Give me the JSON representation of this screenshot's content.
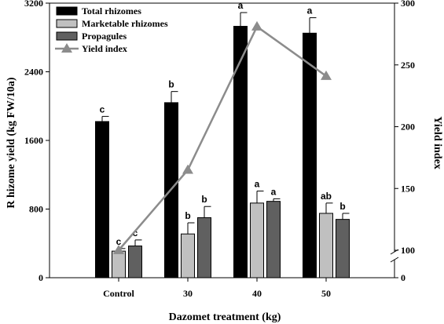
{
  "chart_data": {
    "type": "bar",
    "title": "",
    "xlabel": "Dazomet treatment (kg)",
    "ylabel": "R hizome yield (kg FW/10a)",
    "y2label": "Yield index",
    "categories": [
      "Control",
      "30",
      "40",
      "50"
    ],
    "ylim": [
      0,
      3200
    ],
    "yticks": [
      0,
      800,
      1600,
      2400,
      3200
    ],
    "y2lim": [
      0,
      300
    ],
    "y2ticks": [
      0,
      100,
      150,
      200,
      250,
      300
    ],
    "y2_axis_break": [
      0,
      100
    ],
    "legend_position": "top-left",
    "grid": false,
    "series": [
      {
        "name": "Total rhizomes",
        "color": "#000000",
        "values": [
          1820,
          2040,
          2930,
          2850
        ],
        "errors": [
          60,
          130,
          160,
          180
        ],
        "labels": [
          "c",
          "b",
          "a",
          "a"
        ]
      },
      {
        "name": "Marketable rhizomes",
        "color": "#c0c0c0",
        "values": [
          310,
          510,
          870,
          750
        ],
        "errors": [
          30,
          130,
          140,
          120
        ],
        "labels": [
          "c",
          "b",
          "a",
          "ab"
        ]
      },
      {
        "name": "Propagules",
        "color": "#606060",
        "values": [
          370,
          700,
          890,
          680
        ],
        "errors": [
          70,
          130,
          30,
          70
        ],
        "labels": [
          "c",
          "b",
          "a",
          "b"
        ]
      }
    ],
    "line_series": {
      "name": "Yield index",
      "color": "#8c8c8c",
      "marker": "triangle",
      "axis": "right",
      "values": [
        100,
        165,
        281,
        241
      ]
    }
  }
}
